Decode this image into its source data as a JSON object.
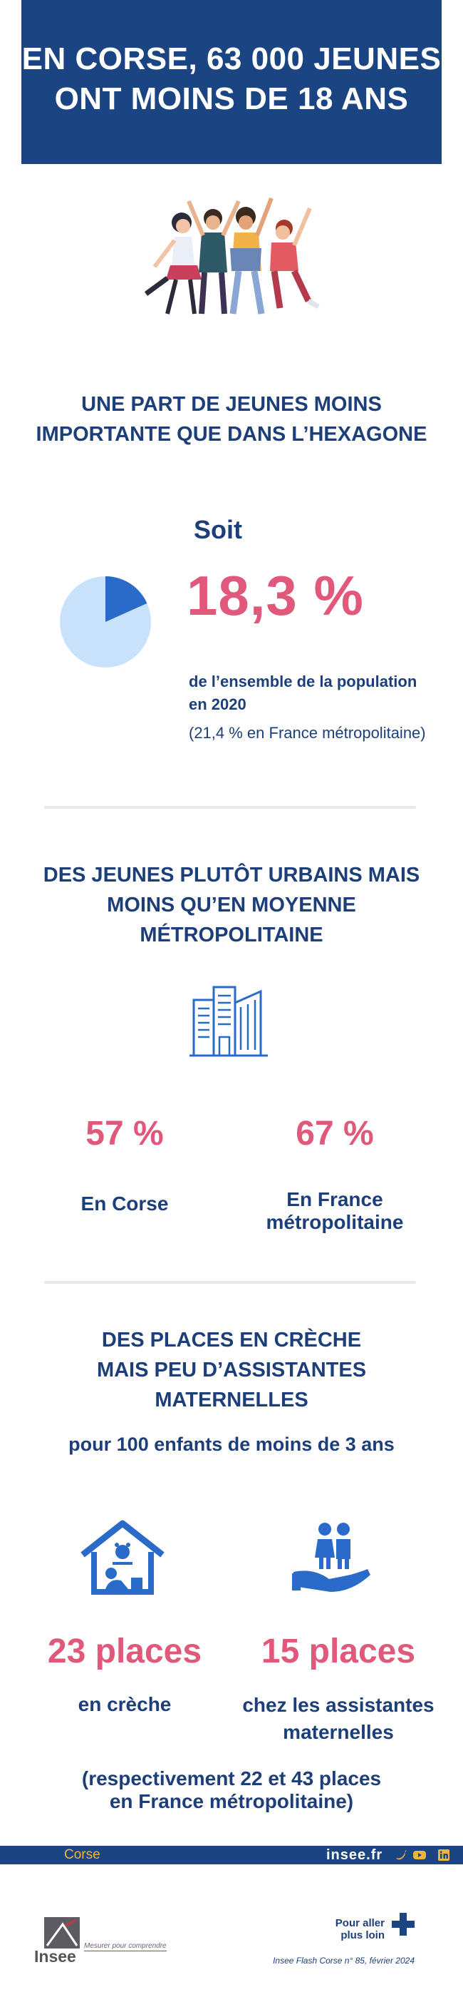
{
  "header": {
    "title_line1": "EN CORSE, 63 000 JEUNES",
    "title_line2": "ONT MOINS DE 18 ANS"
  },
  "section1": {
    "title_line1": "UNE PART DE JEUNES MOINS",
    "title_line2": "IMPORTANTE QUE DANS L’HEXAGONE",
    "soit": "Soit",
    "percent": "18,3 %",
    "desc_line1": "de l’ensemble de la population",
    "desc_line2": "en 2020",
    "comparison": "(21,4 % en France métropolitaine)",
    "pie_share": 0.183,
    "colors": {
      "pie_main": "#c9e2fb",
      "pie_slice": "#2a6ac8"
    }
  },
  "section2": {
    "title_line1": "DES JEUNES PLUTÔT URBAINS MAIS",
    "title_line2": "MOINS QU’EN MOYENNE",
    "title_line3": "MÉTROPOLITAINE",
    "left_value": "57 %",
    "left_label": "En Corse",
    "right_value": "67 %",
    "right_label_line1": "En France",
    "right_label_line2": "métropolitaine",
    "icon": "city-buildings-icon"
  },
  "section3": {
    "title_line1": "DES PLACES EN CRÈCHE",
    "title_line2": "MAIS PEU D’ASSISTANTES",
    "title_line3": "MATERNELLES",
    "subtitle": "pour 100 enfants de moins de 3 ans",
    "left_value": "23 places",
    "left_label": "en crèche",
    "right_value": "15 places",
    "right_label_line1": "chez les assistantes",
    "right_label_line2": "maternelles",
    "note_line1": "(respectivement 22 et 43 places",
    "note_line2": "en France métropolitaine)"
  },
  "footer": {
    "region": "Corse",
    "site": "insee.fr",
    "logo_text": "Insee",
    "slogan": "Mesurer pour comprendre",
    "more_line1": "Pour aller",
    "more_line2": "plus loin",
    "publication": "Insee Flash Corse n° 85, février 2024"
  },
  "colors": {
    "navy": "#1a4582",
    "pink": "#e0587a",
    "accent_blue": "#2a6ac8",
    "gold": "#f0b43c"
  }
}
